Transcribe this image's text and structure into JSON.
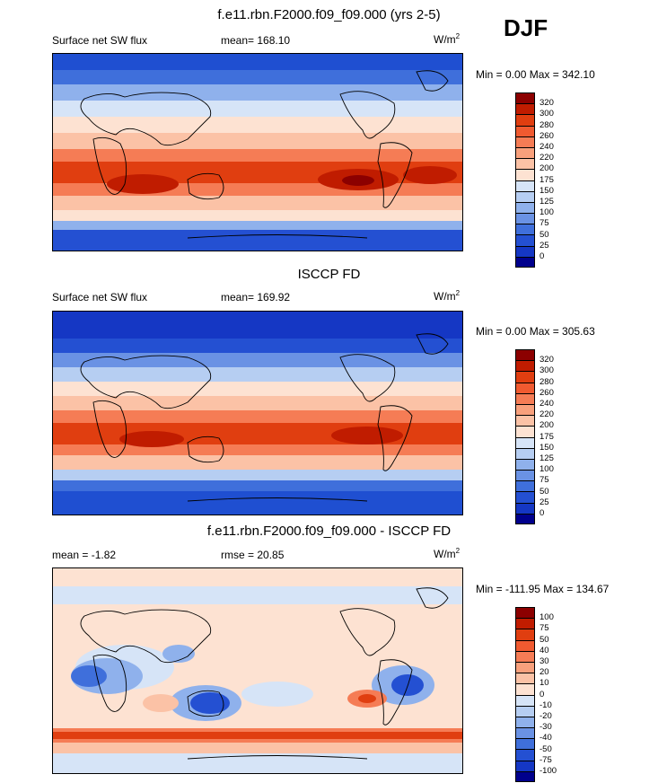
{
  "season": "DJF",
  "units_sup": "2",
  "panels": [
    {
      "title": "f.e11.rbn.F2000.f09_f09.000 (yrs 2-5)",
      "left_label": "Surface net SW flux",
      "mean_label": "mean= 168.10",
      "units": "W/m",
      "minmax": "Min =   0.00 Max = 342.10"
    },
    {
      "title": "ISCCP FD",
      "left_label": "Surface net SW flux",
      "mean_label": "mean= 169.92",
      "units": "W/m",
      "minmax": "Min =   0.00 Max = 305.63"
    },
    {
      "title": "f.e11.rbn.F2000.f09_f09.000 - ISCCP FD",
      "left_label": "mean =  -1.82",
      "mean_label": "rmse =  20.85",
      "units": "W/m",
      "minmax": "Min = -111.95 Max = 134.67"
    }
  ],
  "colorbars": {
    "flux": {
      "labels": [
        "320",
        "300",
        "280",
        "260",
        "240",
        "220",
        "200",
        "175",
        "150",
        "125",
        "100",
        "75",
        "50",
        "25",
        "0"
      ],
      "colors": [
        "#8c0000",
        "#c01c00",
        "#e03e10",
        "#f05a30",
        "#f57c55",
        "#f8a07c",
        "#fbc2a6",
        "#fde2d2",
        "#d6e4f7",
        "#b6cef2",
        "#8fb1ec",
        "#6a92e4",
        "#3f6fdb",
        "#2450d2",
        "#1537c4",
        "#00008c"
      ]
    },
    "diff": {
      "labels": [
        "100",
        "75",
        "50",
        "40",
        "30",
        "20",
        "10",
        "0",
        "-10",
        "-20",
        "-30",
        "-40",
        "-50",
        "-75",
        "-100"
      ],
      "colors": [
        "#8c0000",
        "#c01c00",
        "#e03e10",
        "#f05a30",
        "#f57c55",
        "#f8a07c",
        "#fbc2a6",
        "#fde2d2",
        "#d6e4f7",
        "#b6cef2",
        "#8fb1ec",
        "#6a92e4",
        "#3f6fdb",
        "#2450d2",
        "#1537c4",
        "#00008c"
      ]
    }
  },
  "chart_data": [
    {
      "type": "heatmap",
      "title": "f.e11.rbn.F2000.f09_f09.000 (yrs 2-5)",
      "variable": "Surface net SW flux",
      "units": "W/m2",
      "mean": 168.1,
      "min": 0.0,
      "max": 342.1,
      "levels": [
        0,
        25,
        50,
        75,
        100,
        125,
        150,
        175,
        200,
        220,
        240,
        260,
        280,
        300,
        320
      ]
    },
    {
      "type": "heatmap",
      "title": "ISCCP FD",
      "variable": "Surface net SW flux",
      "units": "W/m2",
      "mean": 169.92,
      "min": 0.0,
      "max": 305.63,
      "levels": [
        0,
        25,
        50,
        75,
        100,
        125,
        150,
        175,
        200,
        220,
        240,
        260,
        280,
        300,
        320
      ]
    },
    {
      "type": "heatmap",
      "title": "f.e11.rbn.F2000.f09_f09.000 - ISCCP FD",
      "units": "W/m2",
      "mean": -1.82,
      "rmse": 20.85,
      "min": -111.95,
      "max": 134.67,
      "levels": [
        -100,
        -75,
        -50,
        -40,
        -30,
        -20,
        -10,
        0,
        10,
        20,
        30,
        40,
        50,
        75,
        100
      ]
    }
  ]
}
